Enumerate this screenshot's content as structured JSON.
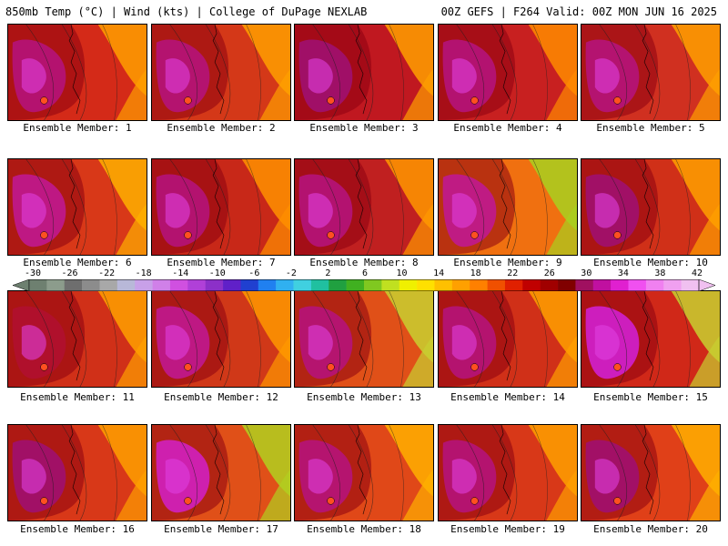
{
  "header": {
    "left": "850mb Temp (°C) | Wind (kts) | College of DuPage NEXLAB",
    "right": "00Z GEFS | F264 Valid: 00Z MON JUN 16 2025"
  },
  "members": [
    {
      "label": "Ensemble Member: 1",
      "base": "#d42a18",
      "core": "#b5137a",
      "warm": "#ff9f00"
    },
    {
      "label": "Ensemble Member: 2",
      "base": "#d43818",
      "core": "#b5137a",
      "warm": "#ff9f00"
    },
    {
      "label": "Ensemble Member: 3",
      "base": "#c01820",
      "core": "#a01070",
      "warm": "#ffa000"
    },
    {
      "label": "Ensemble Member: 4",
      "base": "#c82020",
      "core": "#b5137a",
      "warm": "#ff8c00"
    },
    {
      "label": "Ensemble Member: 5",
      "base": "#d03020",
      "core": "#b5137a",
      "warm": "#ffa000"
    },
    {
      "label": "Ensemble Member: 6",
      "base": "#d83818",
      "core": "#c01890",
      "warm": "#ffb000"
    },
    {
      "label": "Ensemble Member: 7",
      "base": "#c82818",
      "core": "#b5137a",
      "warm": "#ff9000"
    },
    {
      "label": "Ensemble Member: 8",
      "base": "#c02020",
      "core": "#b5137a",
      "warm": "#ff9800"
    },
    {
      "label": "Ensemble Member: 9",
      "base": "#f07010",
      "core": "#c01890",
      "warm": "#a8d020"
    },
    {
      "label": "Ensemble Member: 10",
      "base": "#d03018",
      "core": "#a01070",
      "warm": "#ffa000"
    },
    {
      "label": "Ensemble Member: 11",
      "base": "#d03018",
      "core": "#b01030",
      "warm": "#ffa000"
    },
    {
      "label": "Ensemble Member: 12",
      "base": "#d03818",
      "core": "#c01890",
      "warm": "#ff9800"
    },
    {
      "label": "Ensemble Member: 13",
      "base": "#e05018",
      "core": "#b5137a",
      "warm": "#c8d030"
    },
    {
      "label": "Ensemble Member: 14",
      "base": "#d03018",
      "core": "#b5137a",
      "warm": "#ffa000"
    },
    {
      "label": "Ensemble Member: 15",
      "base": "#d02818",
      "core": "#d020d0",
      "warm": "#c8d030"
    },
    {
      "label": "Ensemble Member: 16",
      "base": "#d83818",
      "core": "#a01070",
      "warm": "#ffa000"
    },
    {
      "label": "Ensemble Member: 17",
      "base": "#e05018",
      "core": "#d020c0",
      "warm": "#b0d020"
    },
    {
      "label": "Ensemble Member: 18",
      "base": "#e04818",
      "core": "#b5137a",
      "warm": "#ffb000"
    },
    {
      "label": "Ensemble Member: 19",
      "base": "#d83818",
      "core": "#b5137a",
      "warm": "#ffa000"
    },
    {
      "label": "Ensemble Member: 20",
      "base": "#e04018",
      "core": "#a01070",
      "warm": "#ffb000"
    }
  ],
  "colorbar": {
    "labels": [
      "-30",
      "-26",
      "-22",
      "-18",
      "-14",
      "-10",
      "-6",
      "-2",
      "2",
      "6",
      "10",
      "14",
      "18",
      "22",
      "26",
      "30",
      "34",
      "38",
      "42"
    ],
    "colors": [
      "#6e8070",
      "#8c9c8c",
      "#6e6e6e",
      "#8c8c8c",
      "#a8a8a8",
      "#b8b8d8",
      "#c8a0e8",
      "#d080e8",
      "#d050e0",
      "#b040d8",
      "#8c30c8",
      "#6020c8",
      "#2040d0",
      "#2080f0",
      "#30b0f0",
      "#40d0e0",
      "#20c0a0",
      "#20a040",
      "#40b020",
      "#80c820",
      "#c0e020",
      "#f0f000",
      "#ffe000",
      "#ffc000",
      "#ffa000",
      "#ff8000",
      "#f05000",
      "#e02000",
      "#c00000",
      "#a00000",
      "#800000",
      "#a01060",
      "#c010a0",
      "#e020d0",
      "#f050f0",
      "#f080f0",
      "#f0a0f0",
      "#f0c0f0"
    ]
  }
}
